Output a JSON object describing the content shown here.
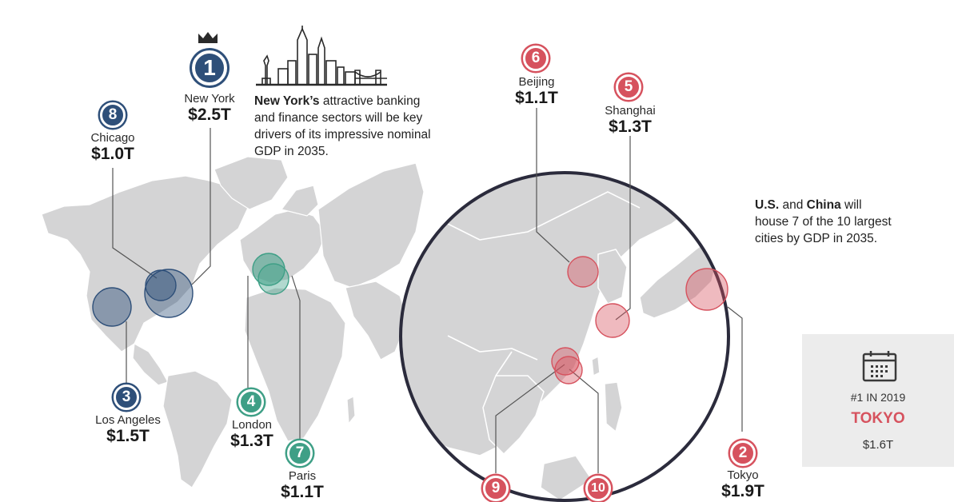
{
  "cities": [
    {
      "key": "new-york",
      "rank": "1",
      "name": "New York",
      "gdp": "$2.5T",
      "color": "#2e4f79"
    },
    {
      "key": "tokyo",
      "rank": "2",
      "name": "Tokyo",
      "gdp": "$1.9T",
      "color": "#d6525e"
    },
    {
      "key": "los-angeles",
      "rank": "3",
      "name": "Los Angeles",
      "gdp": "$1.5T",
      "color": "#2e4f79"
    },
    {
      "key": "london",
      "rank": "4",
      "name": "London",
      "gdp": "$1.3T",
      "color": "#3e9f86"
    },
    {
      "key": "shanghai",
      "rank": "5",
      "name": "Shanghai",
      "gdp": "$1.3T",
      "color": "#d6525e"
    },
    {
      "key": "beijing",
      "rank": "6",
      "name": "Beijing",
      "gdp": "$1.1T",
      "color": "#d6525e"
    },
    {
      "key": "paris",
      "rank": "7",
      "name": "Paris",
      "gdp": "$1.1T",
      "color": "#3e9f86"
    },
    {
      "key": "chicago",
      "rank": "8",
      "name": "Chicago",
      "gdp": "$1.0T",
      "color": "#2e4f79"
    },
    {
      "key": "ninth",
      "rank": "9",
      "color": "#d6525e"
    },
    {
      "key": "tenth",
      "rank": "10",
      "color": "#d6525e"
    }
  ],
  "notes": {
    "new_york": {
      "bold": "New York’s",
      "text": " attractive banking and finance sectors will be key drivers of its impressive nominal GDP in 2035."
    },
    "china": {
      "bold1": "U.S.",
      "mid": " and ",
      "bold2": "China",
      "text": " will house 7 of the 10 largest cities by GDP in 2035."
    }
  },
  "stat_box": {
    "label": "#1 IN 2019",
    "city": "TOKYO",
    "value": "$1.6T"
  },
  "colors": {
    "land": "#d4d4d5",
    "blue": "#2e4f79",
    "green": "#3e9f86",
    "red": "#d6525e",
    "zoom_ring": "#2b2b3c"
  }
}
